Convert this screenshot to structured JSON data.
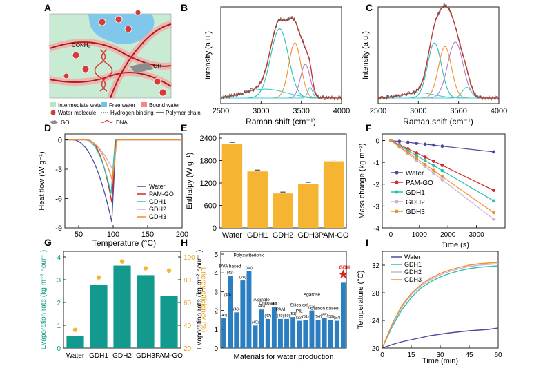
{
  "figure": {
    "panel_letters": [
      "A",
      "B",
      "C",
      "D",
      "E",
      "F",
      "G",
      "H",
      "I"
    ]
  },
  "panel_a": {
    "labels": {
      "conh2": "CONH₂",
      "oh": "OH"
    },
    "legend": [
      {
        "label": "Intermediate water",
        "color": "#b7e4c7"
      },
      {
        "label": "Free water",
        "color": "#6fc3e8"
      },
      {
        "label": "Bound water",
        "color": "#f08a8a"
      },
      {
        "label": "Water molecule",
        "color": "#d83a3a"
      },
      {
        "label": "Hydrogen binding",
        "color": "#333333"
      },
      {
        "label": "Polymer chain",
        "color": "#111111"
      },
      {
        "label": "GO",
        "color": "#8c8c8c"
      },
      {
        "label": "DNA",
        "color": "#d83a3a"
      }
    ]
  },
  "colors": {
    "water": "#4b4b9e",
    "pamgo": "#d62728",
    "gdh1": "#2bbfb3",
    "gdh2": "#c9b3d9",
    "gdh3": "#f28e2b",
    "bar_orange": "#f5b431",
    "bar_teal": "#139a8e",
    "efficiency": "#f5b431",
    "raman_raw": "#555555",
    "raman_fit": "#c0392b",
    "raman_p1": "#2bbfb3",
    "raman_p2": "#f28e2b",
    "raman_p3": "#b07cc6",
    "raman_p4": "#48c9d8",
    "star": "#e02020"
  },
  "chart_data": [
    {
      "id": "B",
      "type": "line",
      "xlabel": "Raman shift (cm⁻¹)",
      "ylabel": "Intensity (a.u.)",
      "xlim": [
        2500,
        4000
      ],
      "xticks": [
        2500,
        3000,
        3500,
        4000
      ],
      "peaks": [
        {
          "center": 3230,
          "width": 110,
          "height": 0.78
        },
        {
          "center": 3420,
          "width": 75,
          "height": 0.62
        },
        {
          "center": 3550,
          "width": 60,
          "height": 0.38
        },
        {
          "center": 3610,
          "width": 30,
          "height": 0.12
        },
        {
          "center": 3050,
          "width": 260,
          "height": 0.1
        }
      ]
    },
    {
      "id": "C",
      "type": "line",
      "xlabel": "Raman shift (cm⁻¹)",
      "ylabel": "Intensity (a.u.)",
      "xlim": [
        2500,
        4000
      ],
      "xticks": [
        2500,
        3000,
        3500,
        4000
      ],
      "peaks": [
        {
          "center": 3200,
          "width": 85,
          "height": 0.62
        },
        {
          "center": 3330,
          "width": 80,
          "height": 0.58
        },
        {
          "center": 3460,
          "width": 95,
          "height": 0.63
        },
        {
          "center": 3600,
          "width": 55,
          "height": 0.12
        },
        {
          "center": 3000,
          "width": 200,
          "height": 0.06
        }
      ]
    },
    {
      "id": "D",
      "type": "line",
      "xlabel": "Temperature (°C)",
      "ylabel": "Heat flow (W g⁻¹)",
      "xlim": [
        30,
        200
      ],
      "ylim": [
        -9,
        0.6
      ],
      "xticks": [
        50,
        100,
        150,
        200
      ],
      "yticks": [
        0,
        -3,
        -6,
        -9
      ],
      "series": [
        {
          "name": "Water",
          "onset": 40,
          "peak_x": 98,
          "depth": -8.4,
          "tail": 0.1
        },
        {
          "name": "PAM-GO",
          "onset": 62,
          "peak_x": 98,
          "depth": -6.4,
          "tail": -0.2
        },
        {
          "name": "GDH1",
          "onset": 58,
          "peak_x": 97,
          "depth": -5.5,
          "tail": -0.3
        },
        {
          "name": "GDH2",
          "onset": 55,
          "peak_x": 100,
          "depth": -3.2,
          "tail": -1.2
        },
        {
          "name": "GDH3",
          "onset": 60,
          "peak_x": 99,
          "depth": -4.2,
          "tail": -0.6
        }
      ]
    },
    {
      "id": "E",
      "type": "bar",
      "ylabel": "Enthalpy (W g⁻¹)",
      "categories": [
        "Water",
        "GDH1",
        "GDH2",
        "GDH3",
        "PAM-GO"
      ],
      "values": [
        2250,
        1510,
        920,
        1180,
        1780
      ],
      "ylim": [
        0,
        2400
      ],
      "yticks": [
        0,
        600,
        1200,
        1800,
        2400
      ]
    },
    {
      "id": "F",
      "type": "line",
      "xlabel": "Time (s)",
      "ylabel": "Mass change (kg m⁻²)",
      "xlim": [
        -300,
        4000
      ],
      "ylim": [
        -4,
        0.3
      ],
      "xticks": [
        0,
        1000,
        2000,
        3000
      ],
      "yticks": [
        0,
        -1,
        -2,
        -3,
        -4
      ],
      "x": [
        0,
        300,
        600,
        900,
        1200,
        1500,
        1800,
        3600
      ],
      "series": [
        {
          "name": "Water",
          "values": [
            0,
            -0.04,
            -0.08,
            -0.13,
            -0.17,
            -0.21,
            -0.26,
            -0.52
          ]
        },
        {
          "name": "PAM-GO",
          "values": [
            0,
            -0.19,
            -0.38,
            -0.57,
            -0.76,
            -0.95,
            -1.14,
            -2.28
          ]
        },
        {
          "name": "GDH1",
          "values": [
            0,
            -0.23,
            -0.46,
            -0.69,
            -0.92,
            -1.15,
            -1.38,
            -2.76
          ]
        },
        {
          "name": "GDH2",
          "values": [
            0,
            -0.3,
            -0.6,
            -0.9,
            -1.2,
            -1.5,
            -1.8,
            -3.6
          ]
        },
        {
          "name": "GDH3",
          "values": [
            0,
            -0.27,
            -0.55,
            -0.82,
            -1.1,
            -1.37,
            -1.65,
            -3.3
          ]
        }
      ]
    },
    {
      "id": "G",
      "type": "bar",
      "ylabel": "Evaporation rate (kg m⁻² hour⁻¹)",
      "y2label": "Energy efficiency (%)",
      "categories": [
        "Water",
        "GDH1",
        "GDH2",
        "GDH3",
        "PAM-GO"
      ],
      "values": [
        0.52,
        2.78,
        3.62,
        3.2,
        2.28
      ],
      "efficiency": [
        36,
        82,
        96,
        90,
        88
      ],
      "ylim": [
        0,
        4
      ],
      "yticks": [
        0,
        1,
        2,
        3,
        4
      ],
      "y2lim": [
        20,
        100
      ],
      "y2ticks": [
        20,
        40,
        60,
        80,
        100
      ]
    },
    {
      "id": "H",
      "type": "bar",
      "xlabel": "Materials for water production",
      "ylabel": "Evaporation rate (kg m⁻² hour⁻¹)",
      "ylim": [
        0,
        5
      ],
      "yticks": [
        0,
        1,
        2,
        3,
        4,
        5
      ],
      "values": [
        1.58,
        3.85,
        1.9,
        3.6,
        4.1,
        1.2,
        2.05,
        1.55,
        2.2,
        1.55,
        1.55,
        1.65,
        1.45,
        1.5,
        2.0,
        1.5,
        1.6,
        1.5,
        1.45,
        3.48
      ],
      "bar_labels": [
        "(41)",
        "(42)",
        "(43)",
        "(28)",
        "(44)",
        "(45)",
        "(46)",
        "(47)",
        "(48)",
        "(49)",
        "(50)",
        "(51)",
        "(32)",
        "(31)",
        "(53)",
        "(54)",
        "(55)",
        "(56)",
        "(57)",
        ""
      ],
      "extra_label": "(40)",
      "group_labels": [
        {
          "text": "PVA based",
          "bar": 1
        },
        {
          "text": "Polyzwitterionic",
          "bar": 4
        },
        {
          "text": "Alginate",
          "bar": 6
        },
        {
          "text": "Chitosan",
          "bar": 7
        },
        {
          "text": "PAM",
          "bar": 9
        },
        {
          "text": "Silica gel",
          "bar": 12
        },
        {
          "text": "PIL",
          "bar": 12
        },
        {
          "text": "Agarose",
          "bar": 14
        },
        {
          "text": "Carbon based",
          "bar": 16
        }
      ],
      "highlight_label": "GDH"
    },
    {
      "id": "I",
      "type": "line",
      "xlabel": "Time (min)",
      "ylabel": "Temperature (°C)",
      "xlim": [
        0,
        60
      ],
      "ylim": [
        20,
        34
      ],
      "xticks": [
        0,
        15,
        30,
        45,
        60
      ],
      "yticks": [
        20,
        24,
        28,
        32
      ],
      "x": [
        0,
        5,
        10,
        15,
        20,
        25,
        30,
        35,
        40,
        45,
        50,
        55,
        60
      ],
      "series": [
        {
          "name": "Water",
          "values": [
            20,
            20.5,
            20.9,
            21.2,
            21.5,
            21.8,
            22.0,
            22.2,
            22.35,
            22.5,
            22.6,
            22.7,
            22.9
          ]
        },
        {
          "name": "GDH1",
          "values": [
            20,
            23.0,
            25.5,
            27.3,
            28.7,
            29.6,
            30.3,
            30.8,
            31.2,
            31.5,
            31.7,
            31.8,
            31.9
          ]
        },
        {
          "name": "GDH2",
          "values": [
            20,
            23.3,
            25.9,
            27.7,
            29.0,
            29.9,
            30.6,
            31.1,
            31.5,
            31.8,
            32.0,
            32.1,
            32.2
          ]
        },
        {
          "name": "GDH3",
          "values": [
            20,
            23.4,
            26.1,
            27.9,
            29.2,
            30.1,
            30.8,
            31.3,
            31.7,
            32.0,
            32.2,
            32.3,
            32.4
          ]
        }
      ]
    }
  ]
}
